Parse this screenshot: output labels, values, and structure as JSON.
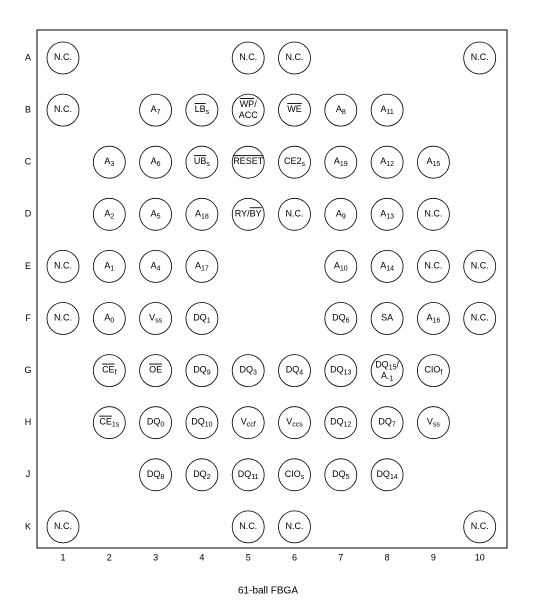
{
  "columns": [
    "1",
    "2",
    "3",
    "4",
    "5",
    "6",
    "7",
    "8",
    "9",
    "10"
  ],
  "rows": [
    {
      "label": "A",
      "cells": [
        [
          [
            {
              "t": "N.C."
            }
          ]
        ],
        null,
        null,
        null,
        [
          [
            {
              "t": "N.C."
            }
          ]
        ],
        [
          [
            {
              "t": "N.C."
            }
          ]
        ],
        null,
        null,
        null,
        [
          [
            {
              "t": "N.C."
            }
          ]
        ]
      ]
    },
    {
      "label": "B",
      "cells": [
        [
          [
            {
              "t": "N.C."
            }
          ]
        ],
        null,
        [
          [
            {
              "t": "A"
            },
            {
              "t": "7",
              "sub": true
            }
          ]
        ],
        [
          [
            {
              "t": "LB",
              "over": true
            },
            {
              "t": "s",
              "sub": true
            }
          ]
        ],
        [
          [
            {
              "t": "WP",
              "over": true
            },
            {
              "t": "/"
            }
          ],
          [
            {
              "t": "ACC"
            }
          ]
        ],
        [
          [
            {
              "t": "WE",
              "over": true
            }
          ]
        ],
        [
          [
            {
              "t": "A"
            },
            {
              "t": "8",
              "sub": true
            }
          ]
        ],
        [
          [
            {
              "t": "A"
            },
            {
              "t": "11",
              "sub": true
            }
          ]
        ],
        null,
        null
      ]
    },
    {
      "label": "C",
      "cells": [
        null,
        [
          [
            {
              "t": "A"
            },
            {
              "t": "3",
              "sub": true
            }
          ]
        ],
        [
          [
            {
              "t": "A"
            },
            {
              "t": "6",
              "sub": true
            }
          ]
        ],
        [
          [
            {
              "t": "UB",
              "over": true
            },
            {
              "t": "s",
              "sub": true
            }
          ]
        ],
        [
          [
            {
              "t": "RESET",
              "over": true
            }
          ]
        ],
        [
          [
            {
              "t": "CE2"
            },
            {
              "t": "s",
              "sub": true
            }
          ]
        ],
        [
          [
            {
              "t": "A"
            },
            {
              "t": "19",
              "sub": true
            }
          ]
        ],
        [
          [
            {
              "t": "A"
            },
            {
              "t": "12",
              "sub": true
            }
          ]
        ],
        [
          [
            {
              "t": "A"
            },
            {
              "t": "15",
              "sub": true
            }
          ]
        ],
        null
      ]
    },
    {
      "label": "D",
      "cells": [
        null,
        [
          [
            {
              "t": "A"
            },
            {
              "t": "2",
              "sub": true
            }
          ]
        ],
        [
          [
            {
              "t": "A"
            },
            {
              "t": "5",
              "sub": true
            }
          ]
        ],
        [
          [
            {
              "t": "A"
            },
            {
              "t": "18",
              "sub": true
            }
          ]
        ],
        [
          [
            {
              "t": "RY/"
            },
            {
              "t": "BY",
              "over": true
            }
          ]
        ],
        [
          [
            {
              "t": "N.C."
            }
          ]
        ],
        [
          [
            {
              "t": "A"
            },
            {
              "t": "9",
              "sub": true
            }
          ]
        ],
        [
          [
            {
              "t": "A"
            },
            {
              "t": "13",
              "sub": true
            }
          ]
        ],
        [
          [
            {
              "t": "N.C."
            }
          ]
        ],
        null
      ]
    },
    {
      "label": "E",
      "cells": [
        [
          [
            {
              "t": "N.C."
            }
          ]
        ],
        [
          [
            {
              "t": "A"
            },
            {
              "t": "1",
              "sub": true
            }
          ]
        ],
        [
          [
            {
              "t": "A"
            },
            {
              "t": "4",
              "sub": true
            }
          ]
        ],
        [
          [
            {
              "t": "A"
            },
            {
              "t": "17",
              "sub": true
            }
          ]
        ],
        null,
        null,
        [
          [
            {
              "t": "A"
            },
            {
              "t": "10",
              "sub": true
            }
          ]
        ],
        [
          [
            {
              "t": "A"
            },
            {
              "t": "14",
              "sub": true
            }
          ]
        ],
        [
          [
            {
              "t": "N.C."
            }
          ]
        ],
        [
          [
            {
              "t": "N.C."
            }
          ]
        ]
      ]
    },
    {
      "label": "F",
      "cells": [
        [
          [
            {
              "t": "N.C."
            }
          ]
        ],
        [
          [
            {
              "t": "A"
            },
            {
              "t": "0",
              "sub": true
            }
          ]
        ],
        [
          [
            {
              "t": "V"
            },
            {
              "t": "ss",
              "sub": true
            }
          ]
        ],
        [
          [
            {
              "t": "DQ"
            },
            {
              "t": "1",
              "sub": true
            }
          ]
        ],
        null,
        null,
        [
          [
            {
              "t": "DQ"
            },
            {
              "t": "6",
              "sub": true
            }
          ]
        ],
        [
          [
            {
              "t": "SA"
            }
          ]
        ],
        [
          [
            {
              "t": "A"
            },
            {
              "t": "16",
              "sub": true
            }
          ]
        ],
        [
          [
            {
              "t": "N.C."
            }
          ]
        ]
      ]
    },
    {
      "label": "G",
      "cells": [
        null,
        [
          [
            {
              "t": "CE",
              "over": true
            },
            {
              "t": "f",
              "sub": true
            }
          ]
        ],
        [
          [
            {
              "t": "OE",
              "over": true
            }
          ]
        ],
        [
          [
            {
              "t": "DQ"
            },
            {
              "t": "9",
              "sub": true
            }
          ]
        ],
        [
          [
            {
              "t": "DQ"
            },
            {
              "t": "3",
              "sub": true
            }
          ]
        ],
        [
          [
            {
              "t": "DQ"
            },
            {
              "t": "4",
              "sub": true
            }
          ]
        ],
        [
          [
            {
              "t": "DQ"
            },
            {
              "t": "13",
              "sub": true
            }
          ]
        ],
        [
          [
            {
              "t": "DQ"
            },
            {
              "t": "15",
              "sub": true
            },
            {
              "t": "/"
            }
          ],
          [
            {
              "t": "A"
            },
            {
              "t": "-1",
              "sub": true
            }
          ]
        ],
        [
          [
            {
              "t": "CIO"
            },
            {
              "t": "f",
              "sub": true
            }
          ]
        ],
        null
      ]
    },
    {
      "label": "H",
      "cells": [
        null,
        [
          [
            {
              "t": "CE",
              "over": true
            },
            {
              "t": "1s",
              "sub": true
            }
          ]
        ],
        [
          [
            {
              "t": "DQ"
            },
            {
              "t": "0",
              "sub": true
            }
          ]
        ],
        [
          [
            {
              "t": "DQ"
            },
            {
              "t": "10",
              "sub": true
            }
          ]
        ],
        [
          [
            {
              "t": "V"
            },
            {
              "t": "ccf",
              "sub": true
            }
          ]
        ],
        [
          [
            {
              "t": "V"
            },
            {
              "t": "ccs",
              "sub": true
            }
          ]
        ],
        [
          [
            {
              "t": "DQ"
            },
            {
              "t": "12",
              "sub": true
            }
          ]
        ],
        [
          [
            {
              "t": "DQ"
            },
            {
              "t": "7",
              "sub": true
            }
          ]
        ],
        [
          [
            {
              "t": "V"
            },
            {
              "t": "ss",
              "sub": true
            }
          ]
        ],
        null
      ]
    },
    {
      "label": "J",
      "cells": [
        null,
        null,
        [
          [
            {
              "t": "DQ"
            },
            {
              "t": "8",
              "sub": true
            }
          ]
        ],
        [
          [
            {
              "t": "DQ"
            },
            {
              "t": "2",
              "sub": true
            }
          ]
        ],
        [
          [
            {
              "t": "DQ"
            },
            {
              "t": "11",
              "sub": true
            }
          ]
        ],
        [
          [
            {
              "t": "CIO"
            },
            {
              "t": "s",
              "sub": true
            }
          ]
        ],
        [
          [
            {
              "t": "DQ"
            },
            {
              "t": "5",
              "sub": true
            }
          ]
        ],
        [
          [
            {
              "t": "DQ"
            },
            {
              "t": "14",
              "sub": true
            }
          ]
        ],
        null,
        null
      ]
    },
    {
      "label": "K",
      "cells": [
        [
          [
            {
              "t": "N.C."
            }
          ]
        ],
        null,
        null,
        null,
        [
          [
            {
              "t": "N.C."
            }
          ]
        ],
        [
          [
            {
              "t": "N.C."
            }
          ]
        ],
        null,
        null,
        null,
        [
          [
            {
              "t": "N.C."
            }
          ]
        ]
      ]
    }
  ],
  "caption": "61-ball FBGA"
}
